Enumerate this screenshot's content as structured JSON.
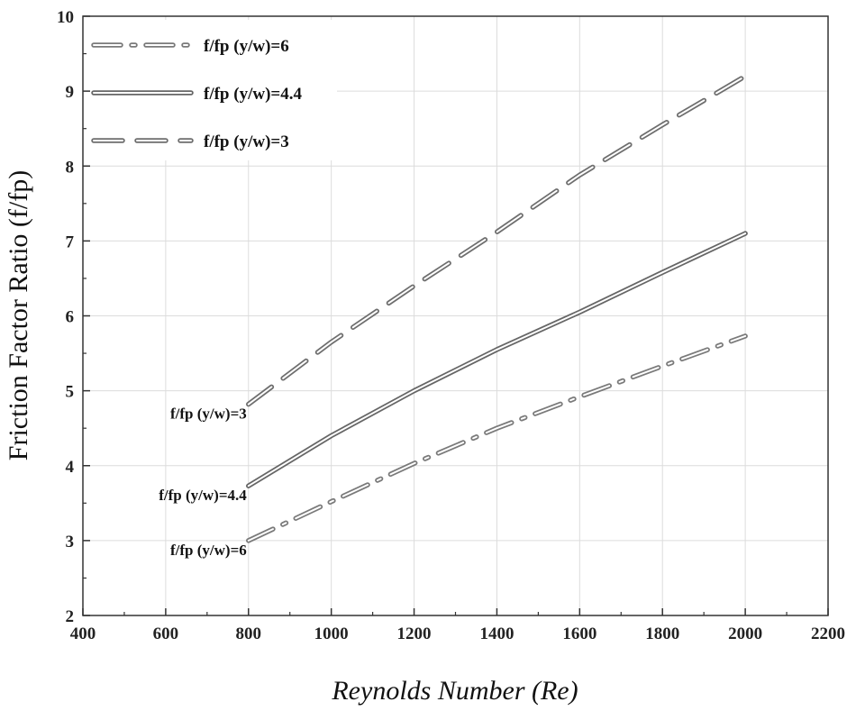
{
  "chart_data": {
    "type": "line",
    "xlabel": "Reynolds Number (Re)",
    "ylabel": "Friction Factor Ratio (f/fp)",
    "xlim": [
      400,
      2200
    ],
    "ylim": [
      2,
      10
    ],
    "xticks": [
      400,
      600,
      800,
      1000,
      1200,
      1400,
      1600,
      1800,
      2000,
      2200
    ],
    "yticks": [
      2,
      3,
      4,
      5,
      6,
      7,
      8,
      9,
      10
    ],
    "grid": true,
    "legend_position": "top-left",
    "series": [
      {
        "name": "f/fp (y/w)=6",
        "annotation": "f/fp (y/w)=6",
        "style": "dash-dot",
        "color": "#7a7a7a",
        "x": [
          800,
          1000,
          1200,
          1400,
          1600,
          1800,
          2000
        ],
        "y": [
          3.0,
          3.52,
          4.03,
          4.5,
          4.92,
          5.33,
          5.73
        ]
      },
      {
        "name": "f/fp (y/w)=4.4",
        "annotation": "f/fp (y/w)=4.4",
        "style": "solid",
        "color": "#666666",
        "x": [
          800,
          1000,
          1200,
          1400,
          1600,
          1800,
          2000
        ],
        "y": [
          3.73,
          4.4,
          5.0,
          5.55,
          6.05,
          6.58,
          7.1
        ]
      },
      {
        "name": "f/fp (y/w)=3",
        "annotation": "f/fp (y/w)=3",
        "style": "dashed",
        "color": "#6e6e6e",
        "x": [
          800,
          1000,
          1200,
          1400,
          1600,
          1800,
          2000
        ],
        "y": [
          4.82,
          5.65,
          6.4,
          7.12,
          7.88,
          8.55,
          9.2
        ]
      }
    ]
  }
}
